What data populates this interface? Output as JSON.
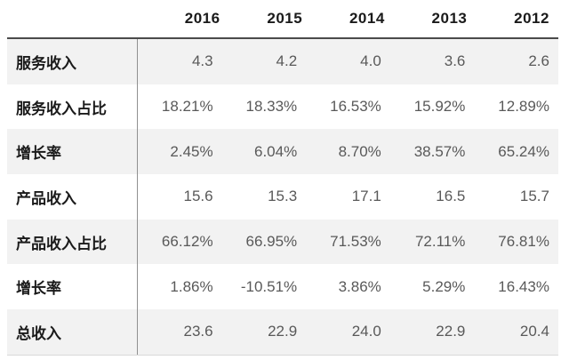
{
  "chart_data": {
    "type": "table",
    "title": "",
    "columns": [
      "",
      "2016",
      "2015",
      "2014",
      "2013",
      "2012"
    ],
    "rows": [
      {
        "label": "服务收入",
        "values": [
          "4.3",
          "4.2",
          "4.0",
          "3.6",
          "2.6"
        ]
      },
      {
        "label": "服务收入占比",
        "values": [
          "18.21%",
          "18.33%",
          "16.53%",
          "15.92%",
          "12.89%"
        ]
      },
      {
        "label": "增长率",
        "values": [
          "2.45%",
          "6.04%",
          "8.70%",
          "38.57%",
          "65.24%"
        ]
      },
      {
        "label": "产品收入",
        "values": [
          "15.6",
          "15.3",
          "17.1",
          "16.5",
          "15.7"
        ]
      },
      {
        "label": "产品收入占比",
        "values": [
          "66.12%",
          "66.95%",
          "71.53%",
          "72.11%",
          "76.81%"
        ]
      },
      {
        "label": "增长率",
        "values": [
          "1.86%",
          "-10.51%",
          "3.86%",
          "5.29%",
          "16.43%"
        ]
      },
      {
        "label": "总收入",
        "values": [
          "23.6",
          "22.9",
          "24.0",
          "22.9",
          "20.4"
        ]
      }
    ],
    "layout": {
      "striped_row_indexes": [
        0,
        2,
        4,
        6
      ],
      "header_alignment": "right",
      "value_alignment": "right"
    }
  },
  "colors": {
    "stripe_background": "#f2f2f2",
    "header_rule": "#4a4a4a",
    "column_divider": "#909090",
    "bottom_rule": "#d9d9d9",
    "label_text": "#1a1a1a",
    "value_text": "#595959",
    "page_background": "#ffffff"
  }
}
